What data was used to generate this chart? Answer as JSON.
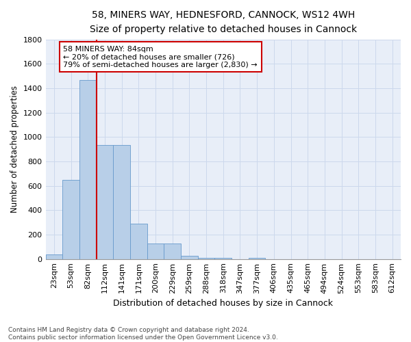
{
  "title_line1": "58, MINERS WAY, HEDNESFORD, CANNOCK, WS12 4WH",
  "title_line2": "Size of property relative to detached houses in Cannock",
  "xlabel": "Distribution of detached houses by size in Cannock",
  "ylabel": "Number of detached properties",
  "categories": [
    "23sqm",
    "53sqm",
    "82sqm",
    "112sqm",
    "141sqm",
    "171sqm",
    "200sqm",
    "229sqm",
    "259sqm",
    "288sqm",
    "318sqm",
    "347sqm",
    "377sqm",
    "406sqm",
    "435sqm",
    "465sqm",
    "494sqm",
    "524sqm",
    "553sqm",
    "583sqm",
    "612sqm"
  ],
  "values": [
    38,
    650,
    1470,
    935,
    935,
    290,
    125,
    125,
    25,
    10,
    10,
    0,
    10,
    0,
    0,
    0,
    0,
    0,
    0,
    0,
    0
  ],
  "bar_color": "#b8cfe8",
  "bar_edge_color": "#6699cc",
  "vline_color": "#cc0000",
  "annotation_line1": "58 MINERS WAY: 84sqm",
  "annotation_line2": "← 20% of detached houses are smaller (726)",
  "annotation_line3": "79% of semi-detached houses are larger (2,830) →",
  "annotation_box_color": "#cc0000",
  "grid_color": "#ccd8ec",
  "background_color": "#e8eef8",
  "footer_text": "Contains HM Land Registry data © Crown copyright and database right 2024.\nContains public sector information licensed under the Open Government Licence v3.0.",
  "ylim": [
    0,
    1800
  ],
  "yticks": [
    0,
    200,
    400,
    600,
    800,
    1000,
    1200,
    1400,
    1600,
    1800
  ],
  "title_fontsize": 10,
  "subtitle_fontsize": 9,
  "ylabel_fontsize": 8.5,
  "xlabel_fontsize": 9,
  "tick_fontsize": 8,
  "annotation_fontsize": 8
}
